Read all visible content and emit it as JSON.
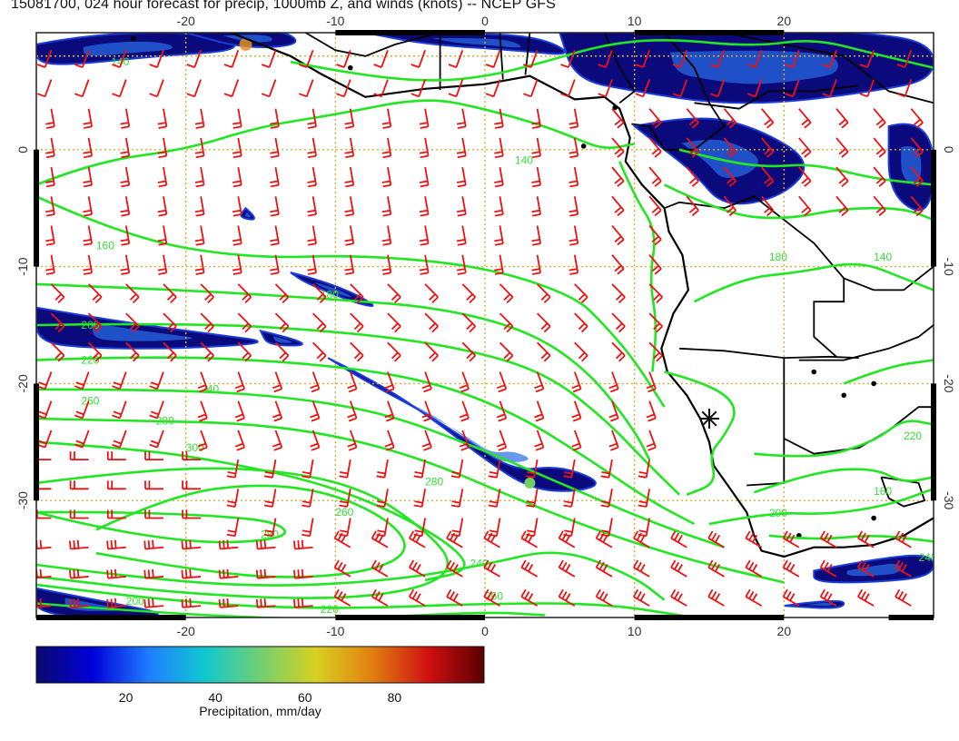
{
  "title": "15081700, 024 hour forecast for precip, 1000mb Z, and winds (knots) -- NCEP GFS",
  "map": {
    "lon_range": [
      -30,
      30
    ],
    "lat_range": [
      -40,
      10
    ],
    "lon_ticks": [
      "-20",
      "-10",
      "0",
      "10",
      "20"
    ],
    "lat_ticks": [
      "0",
      "-10",
      "-20",
      "-30"
    ],
    "grid": "dotted gold",
    "fields": [
      "precipitation shading",
      "1000mb geopotential height contours",
      "wind barbs"
    ],
    "contour_labels": [
      "140",
      "140",
      "160",
      "180",
      "200",
      "220",
      "240",
      "260",
      "280",
      "300",
      "280",
      "260",
      "240",
      "220",
      "200",
      "200",
      "160",
      "140",
      "180",
      "220",
      "240",
      "260",
      "280"
    ],
    "contour_color": "#22e622",
    "barb_color": "#ee1111",
    "coastline_color": "#000000",
    "marker": "star near 15E, 23S"
  },
  "colorbar": {
    "label": "Precipitation, mm/day",
    "ticks": [
      "20",
      "40",
      "60",
      "80"
    ],
    "range": [
      0,
      100
    ],
    "colors": [
      "#0a0a6e",
      "#0000d8",
      "#1e7cff",
      "#10c8d0",
      "#70d070",
      "#d8d020",
      "#e08010",
      "#d01010",
      "#5a0000"
    ]
  }
}
